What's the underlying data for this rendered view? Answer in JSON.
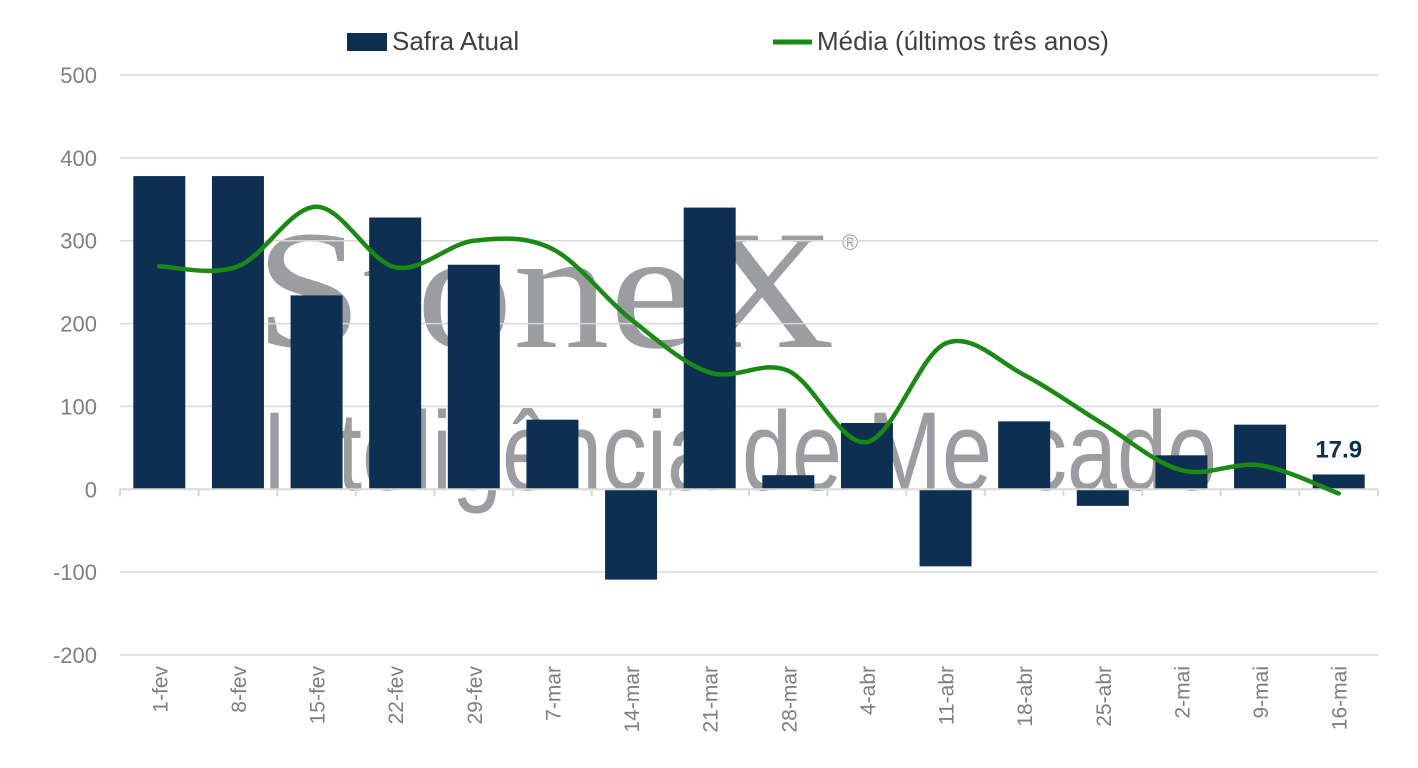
{
  "watermark": {
    "brand": "StoneX",
    "registered_mark": "®",
    "tagline": "Inteligência de Mercado"
  },
  "colors": {
    "bars": "#0d2f52",
    "line": "#1a8a14",
    "grid": "#d9d9d9",
    "axis_text": "#7f7f7f"
  },
  "chart_data": {
    "type": "bar",
    "categories": [
      "1-fev",
      "8-fev",
      "15-fev",
      "22-fev",
      "29-fev",
      "7-mar",
      "14-mar",
      "21-mar",
      "28-mar",
      "4-abr",
      "11-abr",
      "18-abr",
      "25-abr",
      "2-mai",
      "9-mai",
      "16-mai"
    ],
    "series": [
      {
        "name": "Safra Atual",
        "type": "bar",
        "values": [
          378,
          378,
          234,
          328,
          271,
          84,
          -109,
          340,
          17,
          80,
          -93,
          82,
          -20,
          41,
          78,
          17.9
        ]
      },
      {
        "name": "Média (últimos três anos)",
        "type": "line",
        "smooth": true,
        "values": [
          269,
          269,
          341,
          268,
          300,
          290,
          205,
          141,
          143,
          57,
          176,
          138,
          79,
          23,
          29,
          -5
        ]
      }
    ],
    "ylim": [
      -200,
      500
    ],
    "yticks": [
      500,
      400,
      300,
      200,
      100,
      0,
      -100,
      -200
    ],
    "grid": true,
    "legend_position": "top",
    "data_labels": [
      {
        "category": "16-mai",
        "text": "17.9"
      }
    ]
  }
}
